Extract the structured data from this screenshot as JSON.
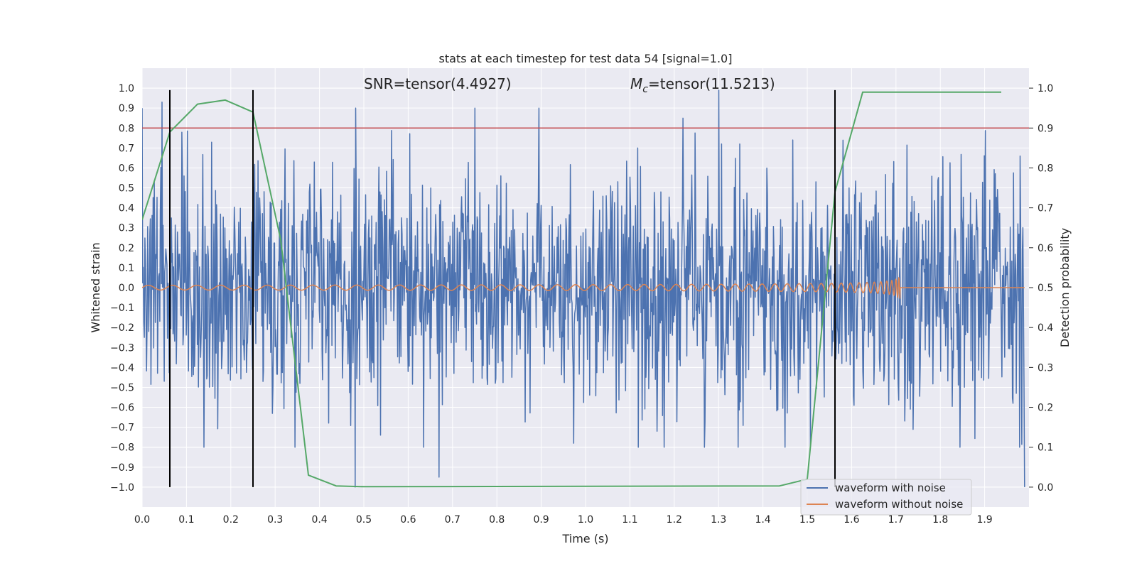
{
  "chart_data": {
    "type": "line",
    "title": "stats at each timestep for test data 54 [signal=1.0]",
    "xlabel": "Time (s)",
    "ylabel_left": "Whitened strain",
    "ylabel_right": "Detection probability",
    "xlim": [
      0.0,
      2.0
    ],
    "ylim_left": [
      -1.1,
      1.1
    ],
    "ylim_right": [
      -0.05,
      1.05
    ],
    "x_ticks": [
      "0.0",
      "0.1",
      "0.2",
      "0.3",
      "0.4",
      "0.5",
      "0.6",
      "0.7",
      "0.8",
      "0.9",
      "1.0",
      "1.1",
      "1.2",
      "1.3",
      "1.4",
      "1.5",
      "1.6",
      "1.7",
      "1.8",
      "1.9"
    ],
    "y_ticks_left": [
      "1.0",
      "0.9",
      "0.8",
      "0.7",
      "0.6",
      "0.5",
      "0.4",
      "0.3",
      "0.2",
      "0.1",
      "0.0",
      "−0.1",
      "−0.2",
      "−0.3",
      "−0.4",
      "−0.5",
      "−0.6",
      "−0.7",
      "−0.8",
      "−0.9",
      "−1.0"
    ],
    "y_ticks_right": [
      "1.0",
      "0.9",
      "0.8",
      "0.7",
      "0.6",
      "0.5",
      "0.4",
      "0.3",
      "0.2",
      "0.1",
      "0.0"
    ],
    "grid": true,
    "annotations": {
      "snr": "SNR=tensor(4.4927)",
      "mc_symbol": "M",
      "mc_sub": "c",
      "mc_value": "=tensor(11.5213)"
    },
    "threshold": {
      "y_right": 0.9,
      "color": "#c44e52"
    },
    "vertical_lines_x": [
      0.0625,
      0.25,
      1.5625
    ],
    "legend": {
      "placement": "lower-right",
      "entries": [
        {
          "label": "waveform with noise",
          "color": "#4c72b0"
        },
        {
          "label": "waveform without noise",
          "color": "#dd8452"
        }
      ]
    },
    "series": [
      {
        "name": "waveform with noise",
        "axis": "left",
        "color": "#4c72b0",
        "x_start": 0.0,
        "x_end": 1.99,
        "samples": 1600,
        "envelope": [
          -0.8,
          0.9
        ],
        "notable_peaks": [
          {
            "x": 0.045,
            "y": 0.93
          },
          {
            "x": 0.75,
            "y": 0.9
          },
          {
            "x": 1.3,
            "y": 0.99
          },
          {
            "x": 0.48,
            "y": -1.0
          },
          {
            "x": 0.67,
            "y": -0.95
          },
          {
            "x": 1.99,
            "y": -1.0
          }
        ]
      },
      {
        "name": "waveform without noise",
        "axis": "left",
        "color": "#dd8452",
        "type": "chirp",
        "x_start": 0.0,
        "x_merger": 1.71,
        "x_end": 1.99,
        "amplitude_start": 0.012,
        "amplitude_peak": 0.21,
        "amplitude_trough": -0.16
      },
      {
        "name": "detection probability",
        "axis": "right",
        "color": "#55a868",
        "x": [
          0.0,
          0.0625,
          0.125,
          0.1875,
          0.25,
          0.3125,
          0.375,
          0.4375,
          0.5,
          1.4375,
          1.5,
          1.5625,
          1.625,
          1.9375
        ],
        "y": [
          0.67,
          0.89,
          0.96,
          0.97,
          0.94,
          0.62,
          0.03,
          0.003,
          0.001,
          0.003,
          0.02,
          0.74,
          0.99,
          0.99
        ]
      }
    ]
  }
}
